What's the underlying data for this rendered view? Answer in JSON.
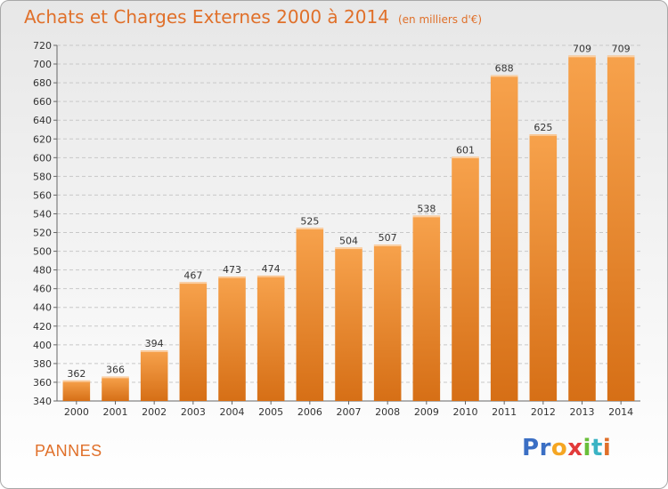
{
  "title": "Achats et Charges Externes 2000 à 2014",
  "subtitle": "(en milliers d'€)",
  "commune": "PANNES",
  "logo": {
    "letters": [
      "P",
      "r",
      "o",
      "x",
      "i",
      "t",
      "i"
    ],
    "colors": [
      "#3b6fc4",
      "#3b6fc4",
      "#f5a623",
      "#e23b3b",
      "#6abf3a",
      "#3bb3c4",
      "#e0702a"
    ]
  },
  "colors": {
    "bar_light": "#f7a24c",
    "bar_dark": "#d66f16",
    "accent": "#e0702a"
  },
  "chart_data": {
    "type": "bar",
    "categories": [
      "2000",
      "2001",
      "2002",
      "2003",
      "2004",
      "2005",
      "2006",
      "2007",
      "2008",
      "2009",
      "2010",
      "2011",
      "2012",
      "2013",
      "2014"
    ],
    "values": [
      362,
      366,
      394,
      467,
      473,
      474,
      525,
      504,
      507,
      538,
      601,
      688,
      625,
      709,
      709
    ],
    "ylim": [
      340,
      720
    ],
    "yticks": [
      340,
      360,
      380,
      400,
      420,
      440,
      460,
      480,
      500,
      520,
      540,
      560,
      580,
      600,
      620,
      640,
      660,
      680,
      700,
      720
    ],
    "grid": true,
    "xlabel": "",
    "ylabel": ""
  }
}
